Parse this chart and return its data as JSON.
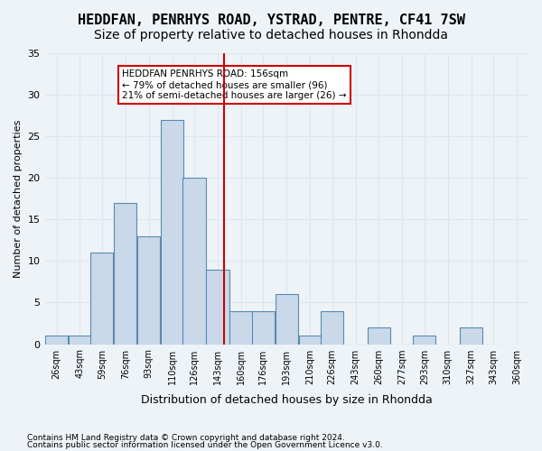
{
  "title": "HEDDFAN, PENRHYS ROAD, YSTRAD, PENTRE, CF41 7SW",
  "subtitle": "Size of property relative to detached houses in Rhondda",
  "xlabel": "Distribution of detached houses by size in Rhondda",
  "ylabel": "Number of detached properties",
  "footer1": "Contains HM Land Registry data © Crown copyright and database right 2024.",
  "footer2": "Contains public sector information licensed under the Open Government Licence v3.0.",
  "bin_labels": [
    "26sqm",
    "43sqm",
    "59sqm",
    "76sqm",
    "93sqm",
    "110sqm",
    "126sqm",
    "143sqm",
    "160sqm",
    "176sqm",
    "193sqm",
    "210sqm",
    "226sqm",
    "243sqm",
    "260sqm",
    "277sqm",
    "293sqm",
    "310sqm",
    "327sqm",
    "343sqm",
    "360sqm"
  ],
  "bin_edges": [
    26,
    43,
    59,
    76,
    93,
    110,
    126,
    143,
    160,
    176,
    193,
    210,
    226,
    243,
    260,
    277,
    293,
    310,
    327,
    343,
    360
  ],
  "bar_heights": [
    1,
    1,
    11,
    17,
    13,
    27,
    20,
    9,
    4,
    4,
    6,
    1,
    4,
    0,
    2,
    0,
    1,
    0,
    2,
    0
  ],
  "bar_color": "#c9d9ea",
  "bar_edge_color": "#5a8ab0",
  "property_line_x": 156,
  "property_line_color": "#cc0000",
  "annotation_text": "HEDDFAN PENRHYS ROAD: 156sqm\n← 79% of detached houses are smaller (96)\n21% of semi-detached houses are larger (26) →",
  "annotation_box_color": "#ffffff",
  "annotation_box_edge_color": "#cc0000",
  "ylim": [
    0,
    35
  ],
  "yticks": [
    0,
    5,
    10,
    15,
    20,
    25,
    30,
    35
  ],
  "grid_color": "#dde7f0",
  "bg_color": "#eef3f8",
  "title_fontsize": 11,
  "subtitle_fontsize": 10
}
